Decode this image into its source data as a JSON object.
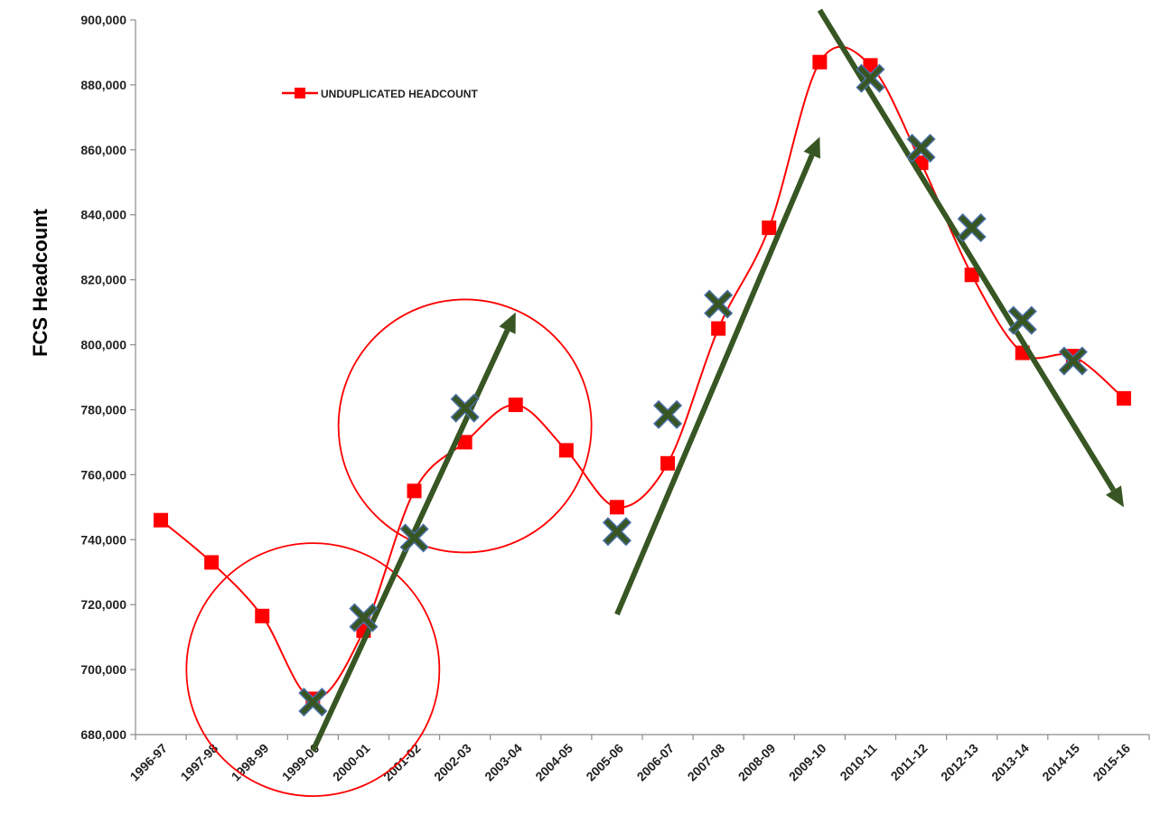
{
  "chart_data": {
    "type": "line",
    "title": "",
    "xlabel": "",
    "ylabel": "FCS Headcount",
    "ylim": [
      680000,
      900000
    ],
    "ytick_step": 20000,
    "categories": [
      "1996-97",
      "1997-98",
      "1998-99",
      "1999-00",
      "2000-01",
      "2001-02",
      "2002-03",
      "2003-04",
      "2004-05",
      "2005-06",
      "2006-07",
      "2007-08",
      "2008-09",
      "2009-10",
      "2010-11",
      "2011-12",
      "2012-13",
      "2013-14",
      "2014-15",
      "2015-16"
    ],
    "series": [
      {
        "name": "UNDUPLICATED HEADCOUNT",
        "color": "#ff0000",
        "marker": "square",
        "smooth": true,
        "values": [
          746000,
          733000,
          716500,
          691000,
          712000,
          755000,
          770000,
          781500,
          767500,
          750000,
          763500,
          805000,
          836000,
          887000,
          886000,
          856000,
          821500,
          797500,
          796500,
          783500
        ]
      }
    ],
    "cross_markers": {
      "color": "#375623",
      "edge_color": "#4a6fa5",
      "points": [
        {
          "x": "1999-00",
          "y": 690000
        },
        {
          "x": "2000-01",
          "y": 716000
        },
        {
          "x": "2001-02",
          "y": 740500
        },
        {
          "x": "2002-03",
          "y": 780500
        },
        {
          "x": "2005-06",
          "y": 742500
        },
        {
          "x": "2006-07",
          "y": 778500
        },
        {
          "x": "2007-08",
          "y": 812500
        },
        {
          "x": "2010-11",
          "y": 882000
        },
        {
          "x": "2011-12",
          "y": 860500
        },
        {
          "x": "2012-13",
          "y": 836000
        },
        {
          "x": "2013-14",
          "y": 807500
        },
        {
          "x": "2014-15",
          "y": 795000
        }
      ]
    },
    "trend_arrows": {
      "color": "#375623",
      "lines": [
        {
          "from": {
            "x": "1999-00",
            "y": 675000
          },
          "to": {
            "x": "2003-04",
            "y": 810000
          }
        },
        {
          "from": {
            "x": "2005-06",
            "y": 717000
          },
          "to": {
            "x": "2009-10",
            "y": 864000
          }
        },
        {
          "from": {
            "x": "2009-10",
            "y": 903000
          },
          "to": {
            "x": "2015-16",
            "y": 750000
          }
        }
      ]
    },
    "highlight_circles": {
      "color": "#ff0000",
      "circles": [
        {
          "center": {
            "x": "1999-00",
            "y": 700000
          }
        },
        {
          "center": {
            "x": "2002-03",
            "y": 775000
          }
        }
      ]
    },
    "legend": {
      "placement": "top-left"
    },
    "grid": false
  }
}
